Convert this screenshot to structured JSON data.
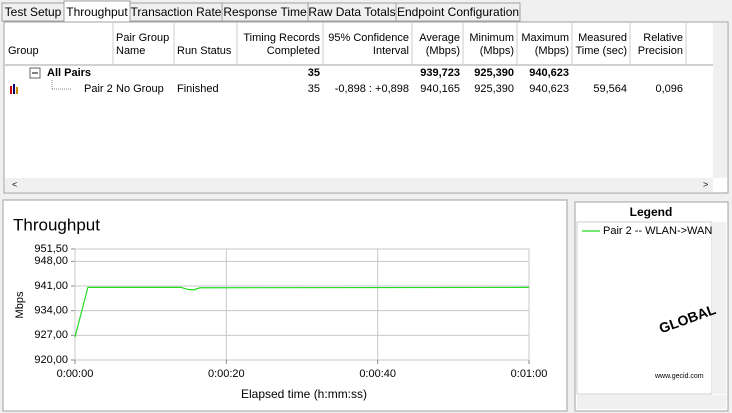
{
  "tabs": [
    "Test Setup",
    "Throughput",
    "Transaction Rate",
    "Response Time",
    "Raw Data Totals",
    "Endpoint Configuration"
  ],
  "active_tab": 1,
  "table": {
    "columns": [
      [
        "Group"
      ],
      [
        "Pair Group",
        "Name"
      ],
      [
        "Run Status"
      ],
      [
        "Timing Records",
        "Completed"
      ],
      [
        "95% Confidence",
        "Interval"
      ],
      [
        "Average",
        "(Mbps)"
      ],
      [
        "Minimum",
        "(Mbps)"
      ],
      [
        "Maximum",
        "(Mbps)"
      ],
      [
        "Measured",
        "Time (sec)"
      ],
      [
        "Relative",
        "Precision"
      ]
    ],
    "rows": [
      [
        "All Pairs",
        null,
        null,
        "35",
        null,
        "939,723",
        "925,390",
        "940,623",
        null,
        null
      ],
      [
        "Pair 2",
        "No Group",
        "Finished",
        "35",
        "-0,898 : +0,898",
        "940,165",
        "925,390",
        "940,623",
        "59,564",
        "0,096"
      ]
    ]
  },
  "chart_data": {
    "type": "line",
    "title": "Throughput",
    "y_label": "Mbps",
    "x_label": "Elapsed time (h:mm:ss)",
    "x": [
      0,
      1.7,
      14,
      15,
      15.7,
      16.5,
      60
    ],
    "series": [
      {
        "name": "Pair 2 -- WLAN->WAN",
        "color": "#22dd22",
        "values": [
          926.5,
          940.6,
          940.6,
          940.0,
          939.9,
          940.5,
          940.6
        ]
      }
    ],
    "xlim": [
      0,
      60
    ],
    "xticks": [
      {
        "value": 0,
        "label": "0:00:00"
      },
      {
        "value": 20,
        "label": "0:00:20"
      },
      {
        "value": 40,
        "label": "0:00:40"
      },
      {
        "value": 60,
        "label": "0:01:00"
      }
    ],
    "ylim": [
      920,
      951.5
    ],
    "yticks": [
      {
        "value": 920,
        "label": "920,00"
      },
      {
        "value": 927,
        "label": "927,00"
      },
      {
        "value": 934,
        "label": "934,00"
      },
      {
        "value": 941,
        "label": "941,00"
      },
      {
        "value": 948,
        "label": "948,00"
      },
      {
        "value": 951.5,
        "label": "951,50"
      }
    ],
    "grid": true,
    "legend_title": "Legend"
  },
  "watermark": [
    "GLOBAL",
    "www.gecid.com"
  ]
}
